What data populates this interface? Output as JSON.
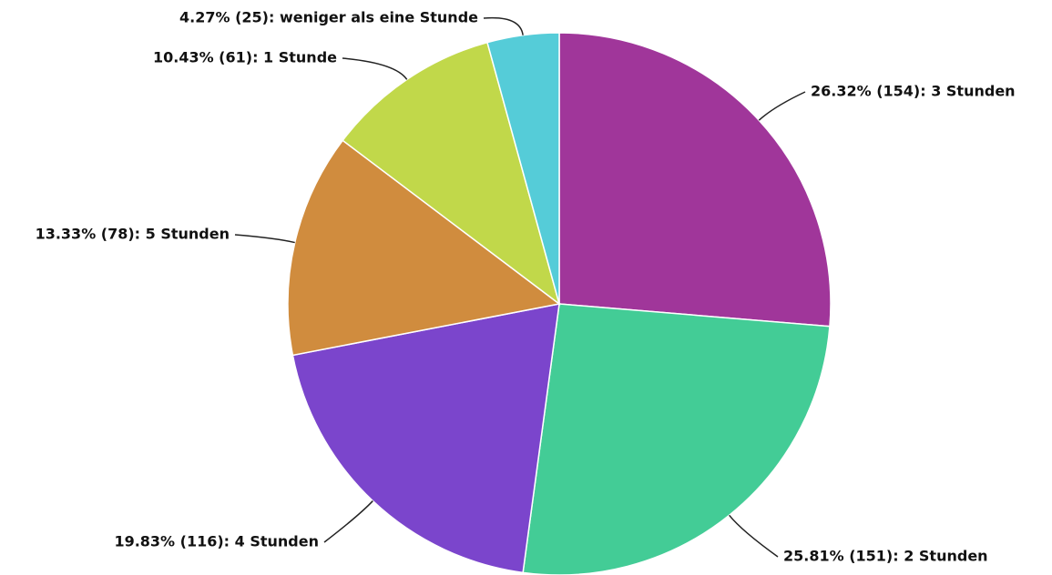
{
  "chart_data": {
    "type": "pie",
    "values": [
      26.32,
      25.81,
      19.83,
      13.33,
      10.43,
      4.27
    ],
    "value_labels": [
      "26.32% (154): 3 Stunden",
      "25.81% (151): 2 Stunden",
      "19.83% (116): 4 Stunden",
      "13.33% (78): 5 Stunden",
      "10.43% (61): 1 Stunde",
      "4.27% (25): weniger als eine Stunde"
    ],
    "colors": [
      "#a0369a",
      "#43cc96",
      "#7b45cc",
      "#d08c3e",
      "#c1d84a",
      "#55ccd8"
    ]
  }
}
